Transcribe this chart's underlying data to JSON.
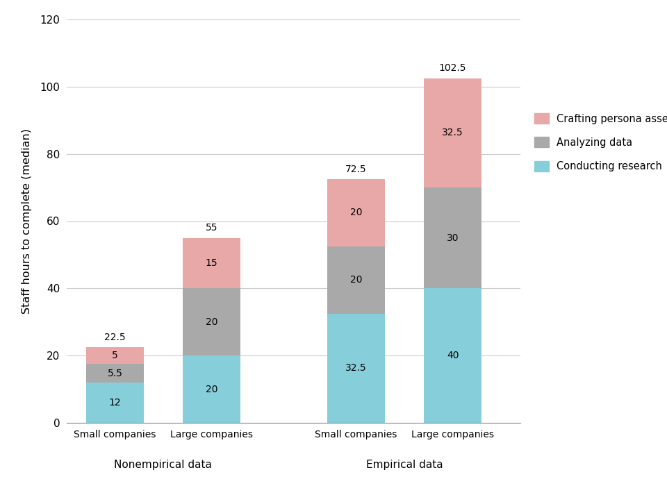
{
  "categories": [
    "Small companies",
    "Large companies",
    "Small companies",
    "Large companies"
  ],
  "group_labels": [
    "Nonempirical data",
    "Empirical data"
  ],
  "conducting_research": [
    12,
    20,
    32.5,
    40
  ],
  "analyzing_data": [
    5.5,
    20,
    20,
    30
  ],
  "crafting_persona": [
    5,
    15,
    20,
    32.5
  ],
  "totals": [
    22.5,
    55,
    72.5,
    102.5
  ],
  "color_conducting": "#87CEDB",
  "color_analyzing": "#A9A9A9",
  "color_crafting": "#E8A8A8",
  "ylabel": "Staff hours to complete (median)",
  "ylim": [
    0,
    120
  ],
  "yticks": [
    0,
    20,
    40,
    60,
    80,
    100,
    120
  ],
  "legend_labels": [
    "Crafting persona assets",
    "Analyzing data",
    "Conducting research"
  ],
  "background_color": "#ffffff",
  "grid_color": "#cccccc"
}
